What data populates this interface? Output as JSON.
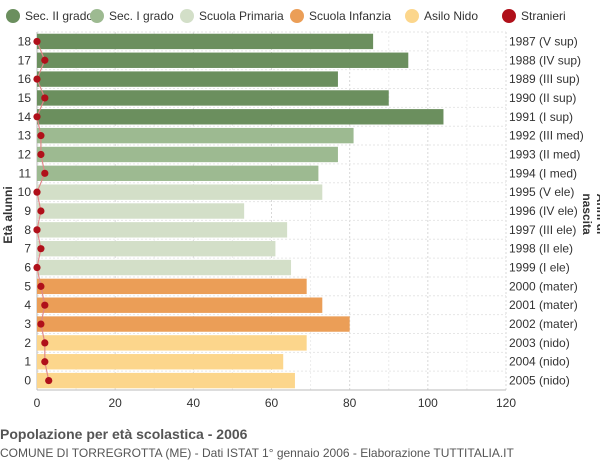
{
  "chart_data": {
    "type": "bar",
    "orientation": "horizontal",
    "title": "Popolazione per età scolastica - 2006",
    "subtitle": "COMUNE DI TORREGROTTA (ME) - Dati ISTAT 1° gennaio 2006 - Elaborazione TUTTITALIA.IT",
    "ylabel": "Età alunni",
    "ylabel_right": "Anni di nascita",
    "xlim": [
      0,
      120
    ],
    "xticks": [
      0,
      20,
      40,
      60,
      80,
      100,
      120
    ],
    "grid": true,
    "legend_position": "top",
    "legend": [
      {
        "name": "Sec. II grado",
        "color": "#6b8f5e"
      },
      {
        "name": "Sec. I grado",
        "color": "#9dba91"
      },
      {
        "name": "Scuola Primaria",
        "color": "#d3dfc8"
      },
      {
        "name": "Scuola Infanzia",
        "color": "#eb9e57"
      },
      {
        "name": "Asilo Nido",
        "color": "#fcd68c"
      },
      {
        "name": "Stranieri",
        "color": "#b0101a"
      }
    ],
    "rows": [
      {
        "age": "18",
        "birth": "1987 (V sup)",
        "value": 86,
        "stranieri": 0,
        "group": 0
      },
      {
        "age": "17",
        "birth": "1988 (IV sup)",
        "value": 95,
        "stranieri": 2,
        "group": 0
      },
      {
        "age": "16",
        "birth": "1989 (III sup)",
        "value": 77,
        "stranieri": 0,
        "group": 0
      },
      {
        "age": "15",
        "birth": "1990 (II sup)",
        "value": 90,
        "stranieri": 2,
        "group": 0
      },
      {
        "age": "14",
        "birth": "1991 (I sup)",
        "value": 104,
        "stranieri": 0,
        "group": 0
      },
      {
        "age": "13",
        "birth": "1992 (III med)",
        "value": 81,
        "stranieri": 1,
        "group": 1
      },
      {
        "age": "12",
        "birth": "1993 (II med)",
        "value": 77,
        "stranieri": 1,
        "group": 1
      },
      {
        "age": "11",
        "birth": "1994 (I med)",
        "value": 72,
        "stranieri": 2,
        "group": 1
      },
      {
        "age": "10",
        "birth": "1995 (V ele)",
        "value": 73,
        "stranieri": 0,
        "group": 2
      },
      {
        "age": "9",
        "birth": "1996 (IV ele)",
        "value": 53,
        "stranieri": 1,
        "group": 2
      },
      {
        "age": "8",
        "birth": "1997 (III ele)",
        "value": 64,
        "stranieri": 0,
        "group": 2
      },
      {
        "age": "7",
        "birth": "1998 (II ele)",
        "value": 61,
        "stranieri": 1,
        "group": 2
      },
      {
        "age": "6",
        "birth": "1999 (I ele)",
        "value": 65,
        "stranieri": 0,
        "group": 2
      },
      {
        "age": "5",
        "birth": "2000 (mater)",
        "value": 69,
        "stranieri": 1,
        "group": 3
      },
      {
        "age": "4",
        "birth": "2001 (mater)",
        "value": 73,
        "stranieri": 2,
        "group": 3
      },
      {
        "age": "3",
        "birth": "2002 (mater)",
        "value": 80,
        "stranieri": 1,
        "group": 3
      },
      {
        "age": "2",
        "birth": "2003 (nido)",
        "value": 69,
        "stranieri": 2,
        "group": 4
      },
      {
        "age": "1",
        "birth": "2004 (nido)",
        "value": 63,
        "stranieri": 2,
        "group": 4
      },
      {
        "age": "0",
        "birth": "2005 (nido)",
        "value": 66,
        "stranieri": 3,
        "group": 4
      }
    ]
  }
}
